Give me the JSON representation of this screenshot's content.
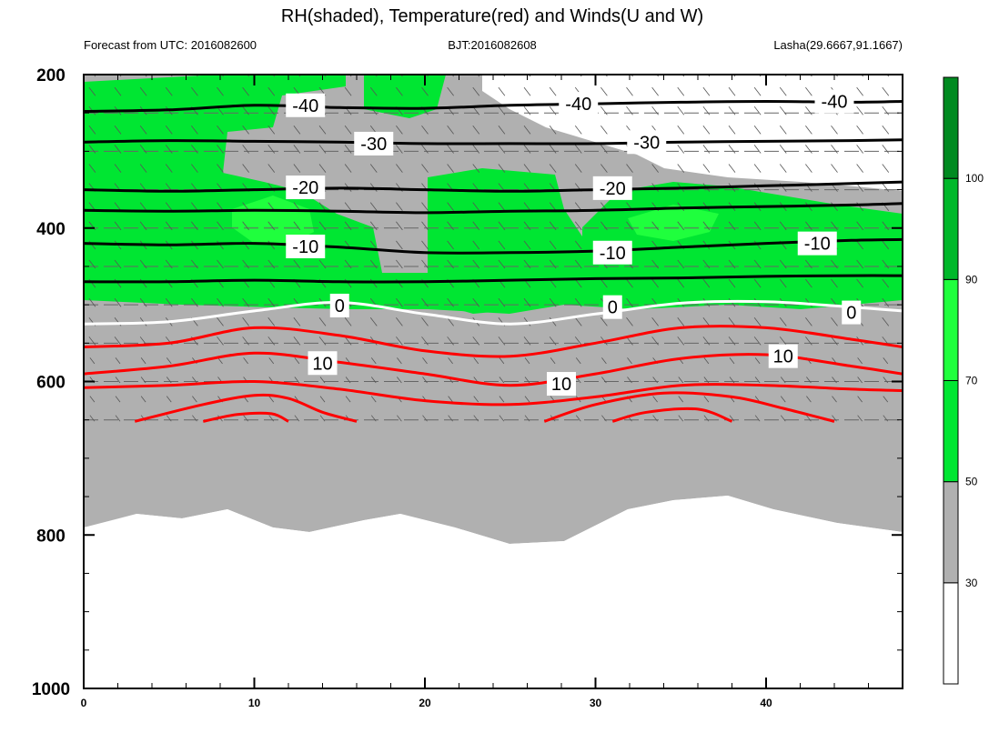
{
  "chart_data": {
    "type": "contour",
    "title": "RH(shaded), Temperature(red) and Winds(U and W)",
    "subtitle_left": "Forecast from UTC: 2016082600",
    "subtitle_center": "BJT:2016082608",
    "subtitle_right": "Lasha(29.6667,91.1667)",
    "xlim": [
      0,
      48
    ],
    "ylim": [
      1000,
      200
    ],
    "x_ticks": [
      0,
      10,
      20,
      30,
      40
    ],
    "y_ticks": [
      200,
      400,
      600,
      800,
      1000
    ],
    "colorbar": {
      "levels": [
        30,
        50,
        70,
        90,
        100
      ],
      "colors": [
        "#ffffff",
        "#b0b0b0",
        "#00e632",
        "#1fff3d",
        "#00b82a",
        "#008a20"
      ]
    },
    "temperature_contours": [
      {
        "label": "-40",
        "color": "#000000",
        "label_pos": [
          [
            13,
            240
          ],
          [
            29,
            238
          ],
          [
            44,
            235
          ]
        ],
        "points": [
          [
            0,
            248
          ],
          [
            5,
            246
          ],
          [
            10,
            240
          ],
          [
            15,
            243
          ],
          [
            20,
            244
          ],
          [
            25,
            240
          ],
          [
            30,
            238
          ],
          [
            35,
            236
          ],
          [
            40,
            235
          ],
          [
            45,
            236
          ],
          [
            48,
            235
          ]
        ]
      },
      {
        "label": "-30",
        "color": "#000000",
        "label_pos": [
          [
            17,
            290
          ],
          [
            33,
            288
          ]
        ],
        "points": [
          [
            0,
            288
          ],
          [
            5,
            286
          ],
          [
            10,
            287
          ],
          [
            15,
            288
          ],
          [
            20,
            290
          ],
          [
            25,
            290
          ],
          [
            30,
            290
          ],
          [
            35,
            288
          ],
          [
            40,
            287
          ],
          [
            45,
            286
          ],
          [
            48,
            285
          ]
        ]
      },
      {
        "label": "-20",
        "color": "#000000",
        "label_pos": [
          [
            13,
            347
          ],
          [
            31,
            348
          ]
        ],
        "points": [
          [
            0,
            350
          ],
          [
            5,
            352
          ],
          [
            10,
            350
          ],
          [
            15,
            348
          ],
          [
            20,
            350
          ],
          [
            25,
            352
          ],
          [
            30,
            350
          ],
          [
            35,
            348
          ],
          [
            40,
            345
          ],
          [
            45,
            342
          ],
          [
            48,
            340
          ]
        ]
      },
      {
        "label": "-10",
        "color": "#000000",
        "label_pos": [
          [
            13,
            424
          ],
          [
            31,
            432
          ],
          [
            43,
            420
          ]
        ],
        "points": [
          [
            0,
            420
          ],
          [
            5,
            422
          ],
          [
            10,
            420
          ],
          [
            15,
            425
          ],
          [
            20,
            432
          ],
          [
            25,
            432
          ],
          [
            30,
            430
          ],
          [
            35,
            425
          ],
          [
            40,
            420
          ],
          [
            45,
            416
          ],
          [
            48,
            415
          ]
        ]
      },
      {
        "label": "0",
        "color": "#ffffff",
        "label_pos": [
          [
            15,
            501
          ],
          [
            31,
            503
          ],
          [
            45,
            510
          ]
        ],
        "points": [
          [
            0,
            525
          ],
          [
            5,
            522
          ],
          [
            10,
            508
          ],
          [
            15,
            497
          ],
          [
            20,
            512
          ],
          [
            25,
            525
          ],
          [
            30,
            512
          ],
          [
            35,
            498
          ],
          [
            40,
            496
          ],
          [
            45,
            503
          ],
          [
            48,
            508
          ]
        ]
      },
      {
        "label": "10",
        "color": "#ff0000",
        "label_pos": [
          [
            14,
            576
          ],
          [
            28,
            603
          ],
          [
            41,
            567
          ]
        ],
        "points": [
          [
            0,
            590
          ],
          [
            5,
            580
          ],
          [
            10,
            563
          ],
          [
            15,
            575
          ],
          [
            20,
            590
          ],
          [
            25,
            605
          ],
          [
            30,
            590
          ],
          [
            35,
            570
          ],
          [
            40,
            565
          ],
          [
            45,
            580
          ],
          [
            48,
            590
          ]
        ]
      }
    ],
    "temperature_extra_contours": [
      {
        "color": "#000000",
        "points": [
          [
            0,
            377
          ],
          [
            5,
            378
          ],
          [
            10,
            377
          ],
          [
            15,
            378
          ],
          [
            20,
            380
          ],
          [
            25,
            378
          ],
          [
            30,
            377
          ],
          [
            35,
            374
          ],
          [
            40,
            372
          ],
          [
            45,
            370
          ],
          [
            48,
            368
          ]
        ]
      },
      {
        "color": "#000000",
        "points": [
          [
            0,
            470
          ],
          [
            5,
            470
          ],
          [
            10,
            468
          ],
          [
            15,
            470
          ],
          [
            20,
            470
          ],
          [
            25,
            468
          ],
          [
            30,
            466
          ],
          [
            35,
            465
          ],
          [
            40,
            463
          ],
          [
            45,
            462
          ],
          [
            48,
            462
          ]
        ]
      },
      {
        "color": "#ff0000",
        "points": [
          [
            0,
            555
          ],
          [
            5,
            550
          ],
          [
            10,
            530
          ],
          [
            15,
            540
          ],
          [
            20,
            560
          ],
          [
            25,
            567
          ],
          [
            30,
            550
          ],
          [
            35,
            530
          ],
          [
            40,
            530
          ],
          [
            45,
            545
          ],
          [
            48,
            555
          ]
        ]
      },
      {
        "color": "#ff0000",
        "points": [
          [
            0,
            608
          ],
          [
            5,
            605
          ],
          [
            10,
            600
          ],
          [
            15,
            610
          ],
          [
            20,
            625
          ],
          [
            25,
            630
          ],
          [
            30,
            620
          ],
          [
            35,
            605
          ],
          [
            40,
            605
          ],
          [
            45,
            610
          ],
          [
            48,
            612
          ]
        ]
      },
      {
        "color": "#ff0000",
        "points": [
          [
            3,
            652
          ],
          [
            7,
            630
          ],
          [
            10,
            618
          ],
          [
            12,
            622
          ],
          [
            14,
            640
          ],
          [
            16,
            652
          ]
        ]
      },
      {
        "color": "#ff0000",
        "points": [
          [
            7,
            652
          ],
          [
            9,
            643
          ],
          [
            11,
            642
          ],
          [
            12,
            652
          ]
        ]
      },
      {
        "color": "#ff0000",
        "points": [
          [
            27,
            652
          ],
          [
            30,
            630
          ],
          [
            34,
            615
          ],
          [
            38,
            620
          ],
          [
            41,
            635
          ],
          [
            44,
            652
          ]
        ]
      },
      {
        "color": "#ff0000",
        "points": [
          [
            31,
            652
          ],
          [
            33,
            640
          ],
          [
            36,
            636
          ],
          [
            38,
            652
          ]
        ]
      }
    ]
  }
}
